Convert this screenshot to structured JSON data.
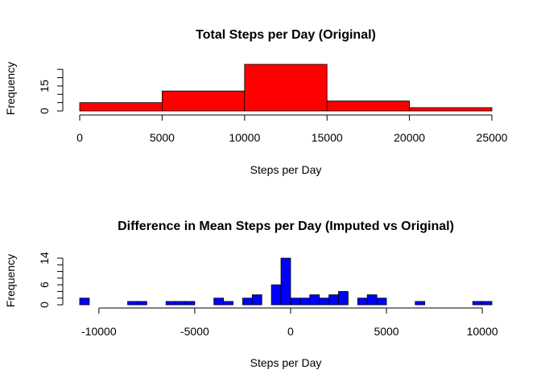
{
  "chart_data": [
    {
      "type": "bar",
      "subtype": "histogram",
      "title": "Total Steps per Day (Original)",
      "xlabel": "Steps per Day",
      "ylabel": "Frequency",
      "color": "#ff0000",
      "bins": [
        {
          "start": 0,
          "end": 5000,
          "count": 5
        },
        {
          "start": 5000,
          "end": 10000,
          "count": 12
        },
        {
          "start": 10000,
          "end": 15000,
          "count": 28
        },
        {
          "start": 15000,
          "end": 20000,
          "count": 6
        },
        {
          "start": 20000,
          "end": 25000,
          "count": 2
        }
      ],
      "xticks": [
        0,
        5000,
        10000,
        15000,
        20000,
        25000
      ],
      "xticks_labels": [
        "0",
        "5000",
        "10000",
        "15000",
        "20000",
        "25000"
      ],
      "yticks": [
        0,
        5,
        10,
        15,
        20,
        25
      ],
      "yticks_labels": [
        "0",
        "",
        "",
        "15",
        "",
        ""
      ],
      "xlim": [
        0,
        25000
      ],
      "ylim": [
        0,
        28
      ],
      "grid": false
    },
    {
      "type": "bar",
      "subtype": "histogram",
      "title": "Difference in Mean Steps per Day (Imputed vs Original)",
      "xlabel": "Steps per Day",
      "ylabel": "Frequency",
      "color": "#0000ff",
      "bins": [
        {
          "start": -11000,
          "end": -10500,
          "count": 2
        },
        {
          "start": -8500,
          "end": -8000,
          "count": 1
        },
        {
          "start": -8000,
          "end": -7500,
          "count": 1
        },
        {
          "start": -6500,
          "end": -6000,
          "count": 1
        },
        {
          "start": -6000,
          "end": -5500,
          "count": 1
        },
        {
          "start": -5500,
          "end": -5000,
          "count": 1
        },
        {
          "start": -4000,
          "end": -3500,
          "count": 2
        },
        {
          "start": -3500,
          "end": -3000,
          "count": 1
        },
        {
          "start": -2500,
          "end": -2000,
          "count": 2
        },
        {
          "start": -2000,
          "end": -1500,
          "count": 3
        },
        {
          "start": -1000,
          "end": -500,
          "count": 6
        },
        {
          "start": -500,
          "end": 0,
          "count": 14
        },
        {
          "start": 0,
          "end": 500,
          "count": 2
        },
        {
          "start": 500,
          "end": 1000,
          "count": 2
        },
        {
          "start": 1000,
          "end": 1500,
          "count": 3
        },
        {
          "start": 1500,
          "end": 2000,
          "count": 2
        },
        {
          "start": 2000,
          "end": 2500,
          "count": 3
        },
        {
          "start": 2500,
          "end": 3000,
          "count": 4
        },
        {
          "start": 3500,
          "end": 4000,
          "count": 2
        },
        {
          "start": 4000,
          "end": 4500,
          "count": 3
        },
        {
          "start": 4500,
          "end": 5000,
          "count": 2
        },
        {
          "start": 6500,
          "end": 7000,
          "count": 1
        },
        {
          "start": 9500,
          "end": 10000,
          "count": 1
        },
        {
          "start": 10000,
          "end": 10500,
          "count": 1
        }
      ],
      "xticks": [
        -10000,
        -5000,
        0,
        5000,
        10000
      ],
      "xticks_labels": [
        "-10000",
        "-5000",
        "0",
        "5000",
        "10000"
      ],
      "yticks": [
        0,
        2,
        4,
        6,
        8,
        10,
        12,
        14
      ],
      "yticks_labels": [
        "0",
        "",
        "",
        "6",
        "",
        "",
        "",
        "14"
      ],
      "xlim": [
        -11000,
        10500
      ],
      "ylim": [
        0,
        14
      ],
      "grid": false
    }
  ]
}
